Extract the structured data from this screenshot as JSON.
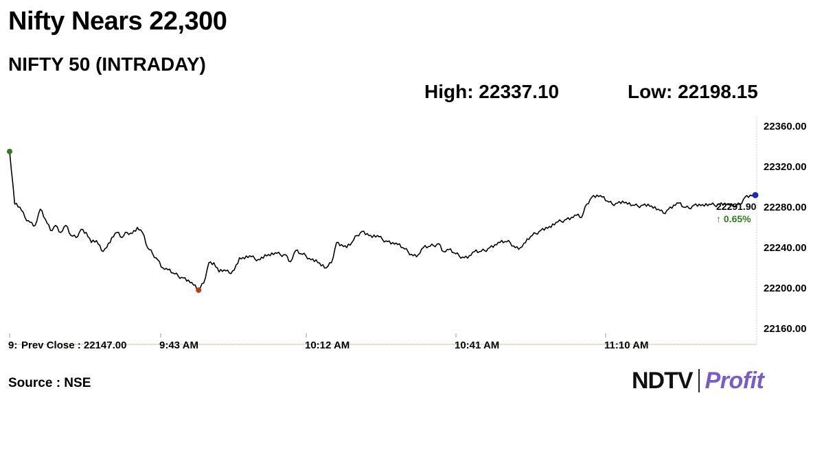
{
  "header": {
    "title": "Nifty Nears 22,300",
    "subtitle": "NIFTY 50 (INTRADAY)",
    "high": "High: 22337.10",
    "low": "Low: 22198.15"
  },
  "footer": {
    "source": "Source : NSE",
    "logo_left": "NDTV",
    "logo_right": "Profit"
  },
  "chart_data": {
    "type": "line",
    "y_ticks": [
      "22360.00",
      "22320.00",
      "22280.00",
      "22240.00",
      "22200.00",
      "22160.00"
    ],
    "ylim": [
      22160,
      22360
    ],
    "x_tick_labels": [
      "9:",
      "9:43 AM",
      "10:12 AM",
      "10:41 AM",
      "11:10 AM"
    ],
    "prev_close": "Prev Close : 22147.00",
    "last_value": "22291.90",
    "change": "↑ 0.65%",
    "x_minutes": [
      0,
      1,
      2,
      3,
      4,
      5,
      6,
      7,
      8,
      9,
      10,
      11,
      12,
      13,
      14,
      15,
      16,
      17,
      18,
      19,
      20,
      21,
      22,
      23,
      24,
      25,
      26,
      27,
      28,
      29,
      30,
      31,
      32,
      33,
      34,
      35,
      36,
      37,
      38,
      39,
      40,
      41,
      42,
      43,
      44,
      45,
      46,
      47,
      48,
      49,
      50,
      51,
      52,
      53,
      54,
      55,
      56,
      57,
      58,
      59,
      60,
      61,
      62,
      63,
      64,
      65,
      66,
      67,
      68,
      69,
      70,
      71,
      72,
      73,
      74,
      75,
      76,
      77,
      78,
      79,
      80,
      81,
      82,
      83,
      84,
      85,
      86,
      87,
      88,
      89,
      90,
      91,
      92,
      93,
      94,
      95,
      96,
      97,
      98,
      99,
      100,
      101,
      102,
      103,
      104,
      105,
      106,
      107,
      108,
      109,
      110,
      111,
      112,
      113,
      114,
      115,
      116,
      117,
      118,
      119,
      120,
      121,
      122,
      123,
      124,
      125,
      126,
      127,
      128,
      129,
      130,
      131,
      132,
      133,
      134,
      135,
      136,
      137,
      138,
      139,
      140,
      141,
      142,
      143,
      144,
      145,
      146
    ],
    "values": [
      22335,
      22283,
      22280,
      22270,
      22265,
      22262,
      22278,
      22268,
      22257,
      22262,
      22255,
      22262,
      22252,
      22250,
      22258,
      22255,
      22245,
      22247,
      22237,
      22240,
      22250,
      22255,
      22250,
      22255,
      22254,
      22260,
      22255,
      22240,
      22234,
      22228,
      22220,
      22218,
      22215,
      22212,
      22210,
      22208,
      22203,
      22198,
      22205,
      22225,
      22225,
      22216,
      22218,
      22215,
      22218,
      22230,
      22229,
      22232,
      22229,
      22228,
      22233,
      22232,
      22235,
      22233,
      22233,
      22226,
      22237,
      22234,
      22232,
      22228,
      22228,
      22222,
      22220,
      22225,
      22245,
      22243,
      22240,
      22245,
      22252,
      22256,
      22254,
      22250,
      22252,
      22248,
      22246,
      22245,
      22243,
      22240,
      22236,
      22232,
      22233,
      22240,
      22241,
      22242,
      22244,
      22236,
      22238,
      22235,
      22232,
      22230,
      22232,
      22236,
      22236,
      22237,
      22240,
      22243,
      22245,
      22246,
      22245,
      22240,
      22240,
      22245,
      22251,
      22254,
      22257,
      22260,
      22260,
      22265,
      22266,
      22268,
      22270,
      22272,
      22270,
      22283,
      22290,
      22292,
      22290,
      22286,
      22283,
      22284,
      22286,
      22283,
      22282,
      22281,
      22282,
      22283,
      22279,
      22278,
      22274,
      22278,
      22282,
      22284,
      22280,
      22279,
      22282,
      22283,
      22281,
      22283,
      22282,
      22283,
      22284,
      22282,
      22281,
      22283,
      22290,
      22292,
      22291.9
    ],
    "high_point": {
      "minute": 0,
      "value": 22335
    },
    "low_point": {
      "minute": 37,
      "value": 22198
    }
  }
}
